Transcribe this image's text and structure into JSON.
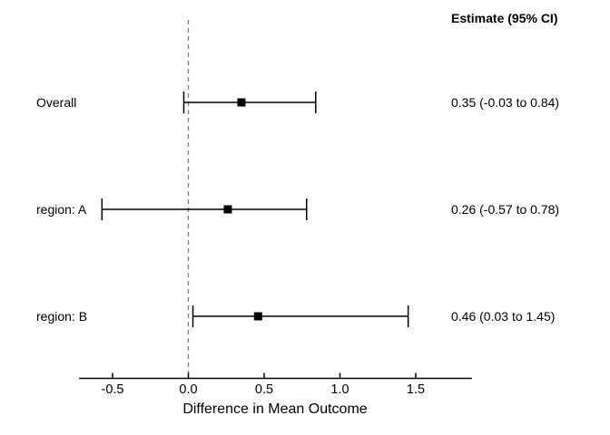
{
  "figure": {
    "background": "#ffffff",
    "text_color": "#000000"
  },
  "chart_data": {
    "type": "scatter",
    "variant": "forest-plot",
    "column_header": "Estimate (95% CI)",
    "xlabel": "Difference in Mean Outcome",
    "xlim": [
      -0.72,
      1.87
    ],
    "x_ticks": [
      -0.5,
      0.0,
      0.5,
      1.0,
      1.5
    ],
    "x_tick_labels": [
      "-0.5",
      "0.0",
      "0.5",
      "1.0",
      "1.5"
    ],
    "grid": false,
    "legend": null,
    "reference_line": {
      "x": 0.0,
      "style": "dashed",
      "color": "#7f7f7f"
    },
    "marker": {
      "shape": "filled-square",
      "color": "#000000"
    },
    "line_color": "#000000",
    "rows": [
      {
        "label": "Overall",
        "estimate": 0.35,
        "ci_low": -0.03,
        "ci_high": 0.84,
        "estimate_text": "0.35 (-0.03 to 0.84)"
      },
      {
        "label": "region: A",
        "estimate": 0.26,
        "ci_low": -0.57,
        "ci_high": 0.78,
        "estimate_text": "0.26 (-0.57 to 0.78)"
      },
      {
        "label": "region: B",
        "estimate": 0.46,
        "ci_low": 0.03,
        "ci_high": 1.45,
        "estimate_text": "0.46 (0.03 to 1.45)"
      }
    ]
  }
}
